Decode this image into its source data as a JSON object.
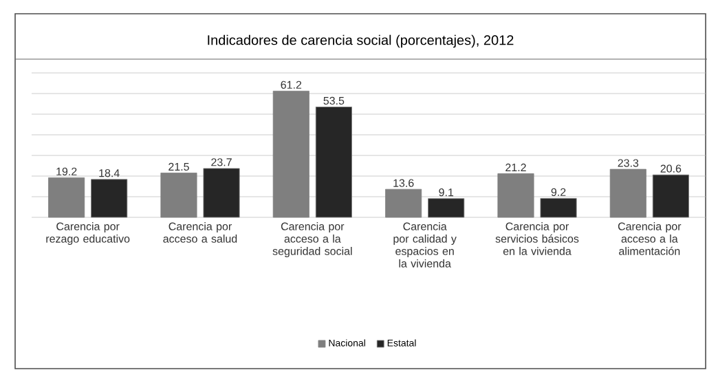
{
  "chart_data": {
    "type": "bar",
    "title": "Indicadores de carencia social (porcentajes), 2012",
    "categories": [
      "Carencia por rezago educativo",
      "Carencia por acceso a salud",
      "Carencia por acceso a la seguridad social",
      "Carencia por calidad y espacios en la vivienda",
      "Carencia por servicios básicos en la vivienda",
      "Carencia por acceso a la alimentación"
    ],
    "series": [
      {
        "name": "Nacional",
        "color": "#7f7f7f",
        "values": [
          19.2,
          21.5,
          61.2,
          13.6,
          21.2,
          23.3
        ]
      },
      {
        "name": "Estatal",
        "color": "#262626",
        "values": [
          18.4,
          23.7,
          53.5,
          9.1,
          9.2,
          20.6
        ]
      }
    ],
    "ylim": [
      0,
      70
    ],
    "yticks": [
      {
        "value": 0,
        "label": null
      },
      {
        "value": 10,
        "label": null
      },
      {
        "value": 20,
        "label": null
      },
      {
        "value": 30,
        "label": null
      },
      {
        "value": 40,
        "label": null
      },
      {
        "value": 50,
        "label": null
      },
      {
        "value": 60,
        "label": null
      },
      {
        "value": 70,
        "label": null
      }
    ],
    "tick_labels": "x",
    "grid": "y",
    "data_labels": true,
    "legend": "bottom"
  }
}
